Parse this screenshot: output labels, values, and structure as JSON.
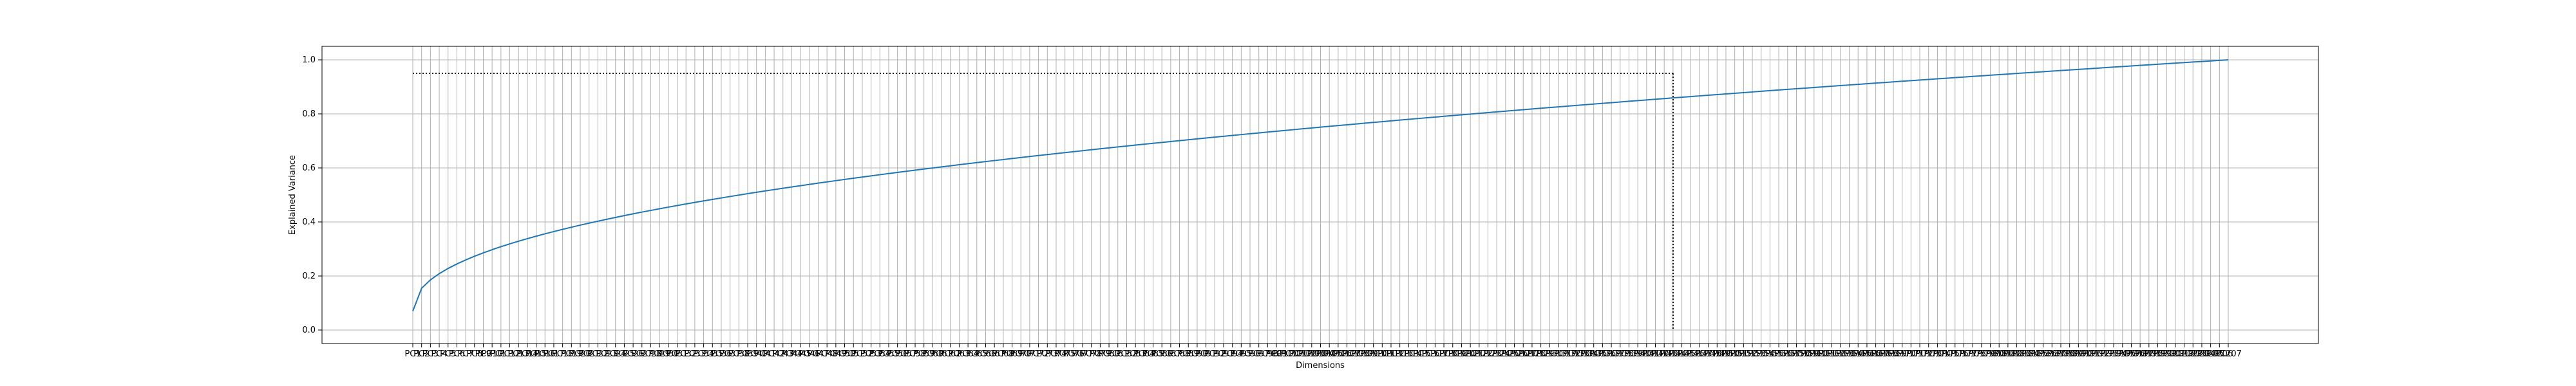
{
  "chart_data": {
    "type": "line",
    "title": "",
    "xlabel": "Dimensions",
    "ylabel": "Explained Variance",
    "x_tick_prefix": "PC",
    "n_components": 207,
    "ylim": [
      -0.05,
      1.05
    ],
    "yticks": [
      "0.0",
      "0.2",
      "0.4",
      "0.6",
      "0.8",
      "1.0"
    ],
    "grid": true,
    "threshold": {
      "y": 0.95,
      "component": 144
    },
    "series": [
      {
        "start": 0.07,
        "end": 1.0,
        "curve_exponent": 0.45,
        "color": "#1f77b4"
      }
    ]
  }
}
